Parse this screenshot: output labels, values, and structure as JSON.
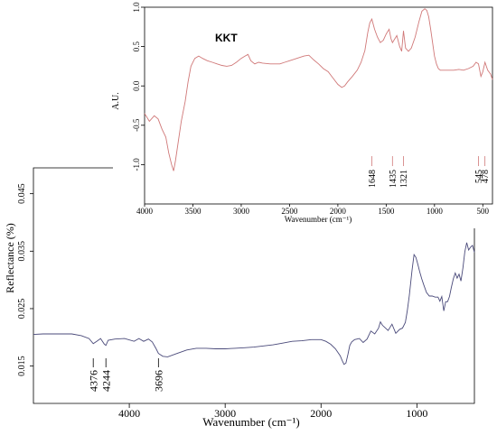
{
  "chart_data": [
    {
      "type": "line",
      "panel": "inset-top",
      "xlabel": "Wavenumber (cm⁻¹)",
      "ylabel": "A.U.",
      "annotation": "KKT",
      "xlim": [
        4000,
        400
      ],
      "ylim": [
        -1.5,
        1.0
      ],
      "x_ticks": [
        4000,
        3500,
        3000,
        2500,
        2000,
        1500,
        1000,
        500
      ],
      "x_tick_labels": [
        "4000",
        "3500",
        "3000",
        "2500",
        "2000",
        "1500",
        "1000",
        "500"
      ],
      "y_ticks": [
        1.0,
        0.5,
        0.0,
        -0.5,
        -1.0
      ],
      "y_tick_labels": [
        "1.0",
        "0.5",
        "0.0",
        "-0.5",
        "-1.0"
      ],
      "peak_labels": [
        "1648",
        "1435",
        "1321",
        "545",
        "478"
      ],
      "peak_positions": [
        1648,
        1435,
        1321,
        545,
        478
      ],
      "line_color": "#d07878",
      "series": [
        {
          "x": [
            4000,
            3950,
            3900,
            3860,
            3820,
            3780,
            3750,
            3720,
            3700,
            3680,
            3650,
            3620,
            3580,
            3550,
            3520,
            3480,
            3440,
            3400,
            3350,
            3300,
            3250,
            3200,
            3150,
            3100,
            3050,
            3000,
            2960,
            2930,
            2900,
            2860,
            2820,
            2780,
            2700,
            2600,
            2550,
            2500,
            2450,
            2400,
            2350,
            2300,
            2250,
            2200,
            2150,
            2100,
            2050,
            2000,
            1960,
            1930,
            1900,
            1850,
            1800,
            1760,
            1720,
            1690,
            1670,
            1648,
            1620,
            1590,
            1560,
            1530,
            1500,
            1470,
            1450,
            1435,
            1410,
            1390,
            1360,
            1340,
            1321,
            1300,
            1270,
            1240,
            1200,
            1160,
            1130,
            1100,
            1080,
            1060,
            1040,
            1020,
            1000,
            980,
            960,
            940,
            920,
            900,
            850,
            800,
            750,
            700,
            650,
            600,
            570,
            545,
            520,
            500,
            478,
            450,
            420,
            400
          ],
          "y": [
            -0.35,
            -0.45,
            -0.38,
            -0.42,
            -0.55,
            -0.65,
            -0.85,
            -1.0,
            -1.08,
            -0.95,
            -0.7,
            -0.45,
            -0.2,
            0.05,
            0.25,
            0.35,
            0.38,
            0.35,
            0.32,
            0.3,
            0.28,
            0.26,
            0.25,
            0.26,
            0.3,
            0.35,
            0.38,
            0.4,
            0.32,
            0.28,
            0.3,
            0.29,
            0.28,
            0.28,
            0.3,
            0.32,
            0.34,
            0.36,
            0.38,
            0.39,
            0.33,
            0.28,
            0.22,
            0.18,
            0.1,
            0.02,
            -0.02,
            0.0,
            0.05,
            0.12,
            0.2,
            0.3,
            0.45,
            0.68,
            0.8,
            0.85,
            0.72,
            0.62,
            0.55,
            0.58,
            0.66,
            0.72,
            0.6,
            0.55,
            0.6,
            0.64,
            0.5,
            0.44,
            0.7,
            0.48,
            0.44,
            0.48,
            0.62,
            0.82,
            0.95,
            0.98,
            0.96,
            0.88,
            0.72,
            0.55,
            0.38,
            0.28,
            0.22,
            0.2,
            0.2,
            0.2,
            0.2,
            0.2,
            0.21,
            0.2,
            0.22,
            0.25,
            0.3,
            0.28,
            0.12,
            0.18,
            0.3,
            0.2,
            0.15,
            0.08
          ]
        }
      ]
    },
    {
      "type": "line",
      "panel": "main-bottom",
      "xlabel": "Wavenumber (cm⁻¹)",
      "ylabel": "Reflectance (%)",
      "xlim": [
        5000,
        400
      ],
      "ylim": [
        0.01,
        0.048
      ],
      "x_ticks": [
        4000,
        3000,
        2000,
        1000
      ],
      "x_tick_labels": [
        "4000",
        "3000",
        "2000",
        "1000"
      ],
      "y_ticks": [
        0.045,
        0.035,
        0.025,
        0.015
      ],
      "y_tick_labels": [
        "0.045",
        "0.035",
        "0.025",
        "0.015"
      ],
      "peak_labels": [
        "4376",
        "4244",
        "3696"
      ],
      "peak_positions": [
        4376,
        4244,
        3696
      ],
      "line_color": "#4a4a7a",
      "series": [
        {
          "x": [
            5000,
            4900,
            4800,
            4700,
            4600,
            4500,
            4420,
            4376,
            4340,
            4300,
            4260,
            4244,
            4220,
            4150,
            4050,
            3950,
            3900,
            3850,
            3800,
            3760,
            3720,
            3696,
            3650,
            3600,
            3500,
            3400,
            3300,
            3200,
            3100,
            3000,
            2900,
            2800,
            2700,
            2600,
            2500,
            2400,
            2300,
            2200,
            2100,
            2000,
            1950,
            1900,
            1850,
            1800,
            1780,
            1760,
            1740,
            1720,
            1700,
            1680,
            1650,
            1600,
            1560,
            1520,
            1480,
            1440,
            1400,
            1380,
            1360,
            1340,
            1300,
            1260,
            1220,
            1180,
            1150,
            1120,
            1100,
            1080,
            1050,
            1030,
            1010,
            990,
            970,
            950,
            930,
            900,
            870,
            840,
            810,
            780,
            760,
            740,
            720,
            700,
            680,
            660,
            640,
            620,
            600,
            580,
            560,
            540,
            520,
            500,
            480,
            460,
            440,
            420,
            400
          ],
          "y": [
            0.0205,
            0.0206,
            0.0206,
            0.0206,
            0.0206,
            0.0203,
            0.0198,
            0.0189,
            0.0193,
            0.0198,
            0.0188,
            0.0186,
            0.0195,
            0.0197,
            0.0198,
            0.0193,
            0.0198,
            0.0193,
            0.0197,
            0.0192,
            0.018,
            0.0172,
            0.0167,
            0.0166,
            0.0172,
            0.0178,
            0.0181,
            0.0181,
            0.018,
            0.018,
            0.0181,
            0.0182,
            0.0183,
            0.0185,
            0.0187,
            0.019,
            0.0193,
            0.0194,
            0.0196,
            0.0196,
            0.0193,
            0.0188,
            0.018,
            0.0168,
            0.016,
            0.0153,
            0.0155,
            0.017,
            0.0186,
            0.0192,
            0.0196,
            0.0198,
            0.0191,
            0.0197,
            0.0211,
            0.0206,
            0.0216,
            0.0227,
            0.0221,
            0.0218,
            0.0212,
            0.0223,
            0.0207,
            0.0214,
            0.0216,
            0.0226,
            0.0246,
            0.0272,
            0.0317,
            0.0344,
            0.0339,
            0.0327,
            0.0314,
            0.0302,
            0.0292,
            0.0278,
            0.0272,
            0.0272,
            0.027,
            0.027,
            0.0263,
            0.0271,
            0.0246,
            0.0262,
            0.0262,
            0.0271,
            0.0287,
            0.0302,
            0.0312,
            0.0303,
            0.031,
            0.0298,
            0.0321,
            0.0349,
            0.0365,
            0.0352,
            0.0357,
            0.036,
            0.0348
          ]
        }
      ]
    }
  ]
}
